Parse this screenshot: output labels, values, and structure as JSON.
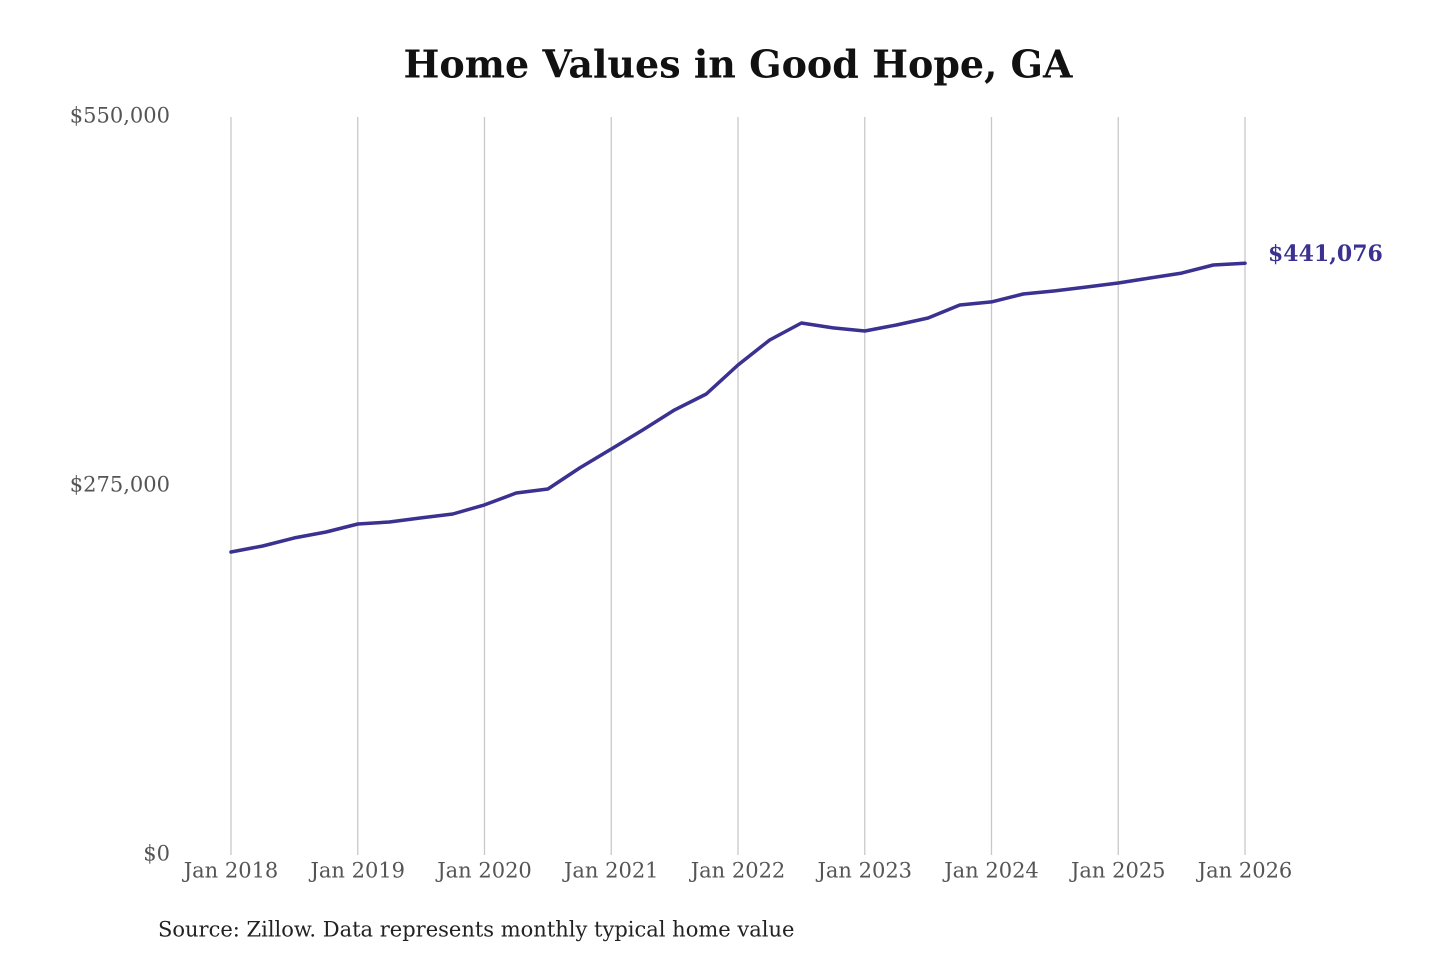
{
  "chart_data": {
    "type": "line",
    "title": "Home Values in Good Hope, GA",
    "source": "Source: Zillow. Data represents monthly typical home value",
    "x": [
      "2018-01",
      "2018-04",
      "2018-07",
      "2018-10",
      "2019-01",
      "2019-04",
      "2019-07",
      "2019-10",
      "2020-01",
      "2020-04",
      "2020-07",
      "2020-10",
      "2021-01",
      "2021-04",
      "2021-07",
      "2021-10",
      "2022-01",
      "2022-04",
      "2022-07",
      "2022-10",
      "2023-01",
      "2023-04",
      "2023-07",
      "2023-10",
      "2024-01",
      "2024-04",
      "2024-07",
      "2024-10",
      "2025-01",
      "2025-04",
      "2025-07",
      "2025-10",
      "2026-01"
    ],
    "series": [
      {
        "color": "#3a3190",
        "values": [
          225800,
          230300,
          236300,
          240700,
          246700,
          248200,
          251200,
          254100,
          260900,
          269800,
          272800,
          288400,
          302600,
          316800,
          331700,
          343600,
          365200,
          383800,
          396500,
          392800,
          390500,
          395000,
          400200,
          409900,
          412200,
          418100,
          420400,
          423300,
          426300,
          430000,
          433700,
          439700,
          441076
        ],
        "value_labels": [
          null,
          null,
          null,
          null,
          null,
          null,
          null,
          null,
          null,
          null,
          null,
          null,
          null,
          null,
          null,
          null,
          null,
          null,
          null,
          null,
          null,
          null,
          null,
          null,
          null,
          null,
          null,
          null,
          null,
          null,
          null,
          null,
          "$441,076"
        ]
      }
    ],
    "xlim": [
      "2018-01",
      "2026-01"
    ],
    "xticks": [
      {
        "value": "2018-01",
        "label": "Jan 2018"
      },
      {
        "value": "2019-01",
        "label": "Jan 2019"
      },
      {
        "value": "2020-01",
        "label": "Jan 2020"
      },
      {
        "value": "2021-01",
        "label": "Jan 2021"
      },
      {
        "value": "2022-01",
        "label": "Jan 2022"
      },
      {
        "value": "2023-01",
        "label": "Jan 2023"
      },
      {
        "value": "2024-01",
        "label": "Jan 2024"
      },
      {
        "value": "2025-01",
        "label": "Jan 2025"
      },
      {
        "value": "2026-01",
        "label": "Jan 2026"
      }
    ],
    "ylim": [
      0,
      550000
    ],
    "yticks": [
      {
        "value": 0,
        "label": "$0"
      },
      {
        "value": 275000,
        "label": "$275,000"
      },
      {
        "value": 550000,
        "label": "$550,000"
      }
    ],
    "grid": "x"
  }
}
